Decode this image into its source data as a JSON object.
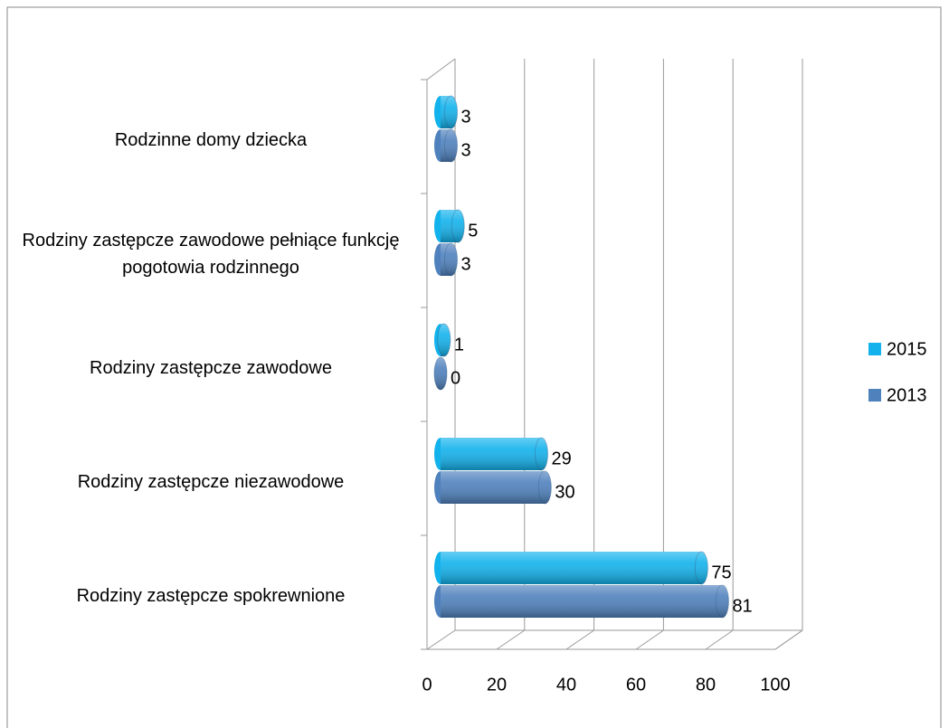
{
  "chart_data": {
    "type": "bar3d_horizontal",
    "categories": [
      "Rodziny  zastępcze spokrewnione",
      "Rodziny zastępcze niezawodowe",
      "Rodziny zastępcze zawodowe",
      "Rodziny zastępcze zawodowe pełniące funkcję pogotowia rodzinnego",
      "Rodzinne domy dziecka"
    ],
    "series": [
      {
        "name": "2015",
        "color": "#12b2ec",
        "values": [
          75,
          29,
          1,
          5,
          3
        ]
      },
      {
        "name": "2013",
        "color": "#4f81bd",
        "values": [
          81,
          30,
          0,
          3,
          3
        ]
      }
    ],
    "xlim": [
      0,
      100
    ],
    "xticks": [
      0,
      20,
      40,
      60,
      80,
      100
    ],
    "grid": true,
    "legend": "right"
  }
}
